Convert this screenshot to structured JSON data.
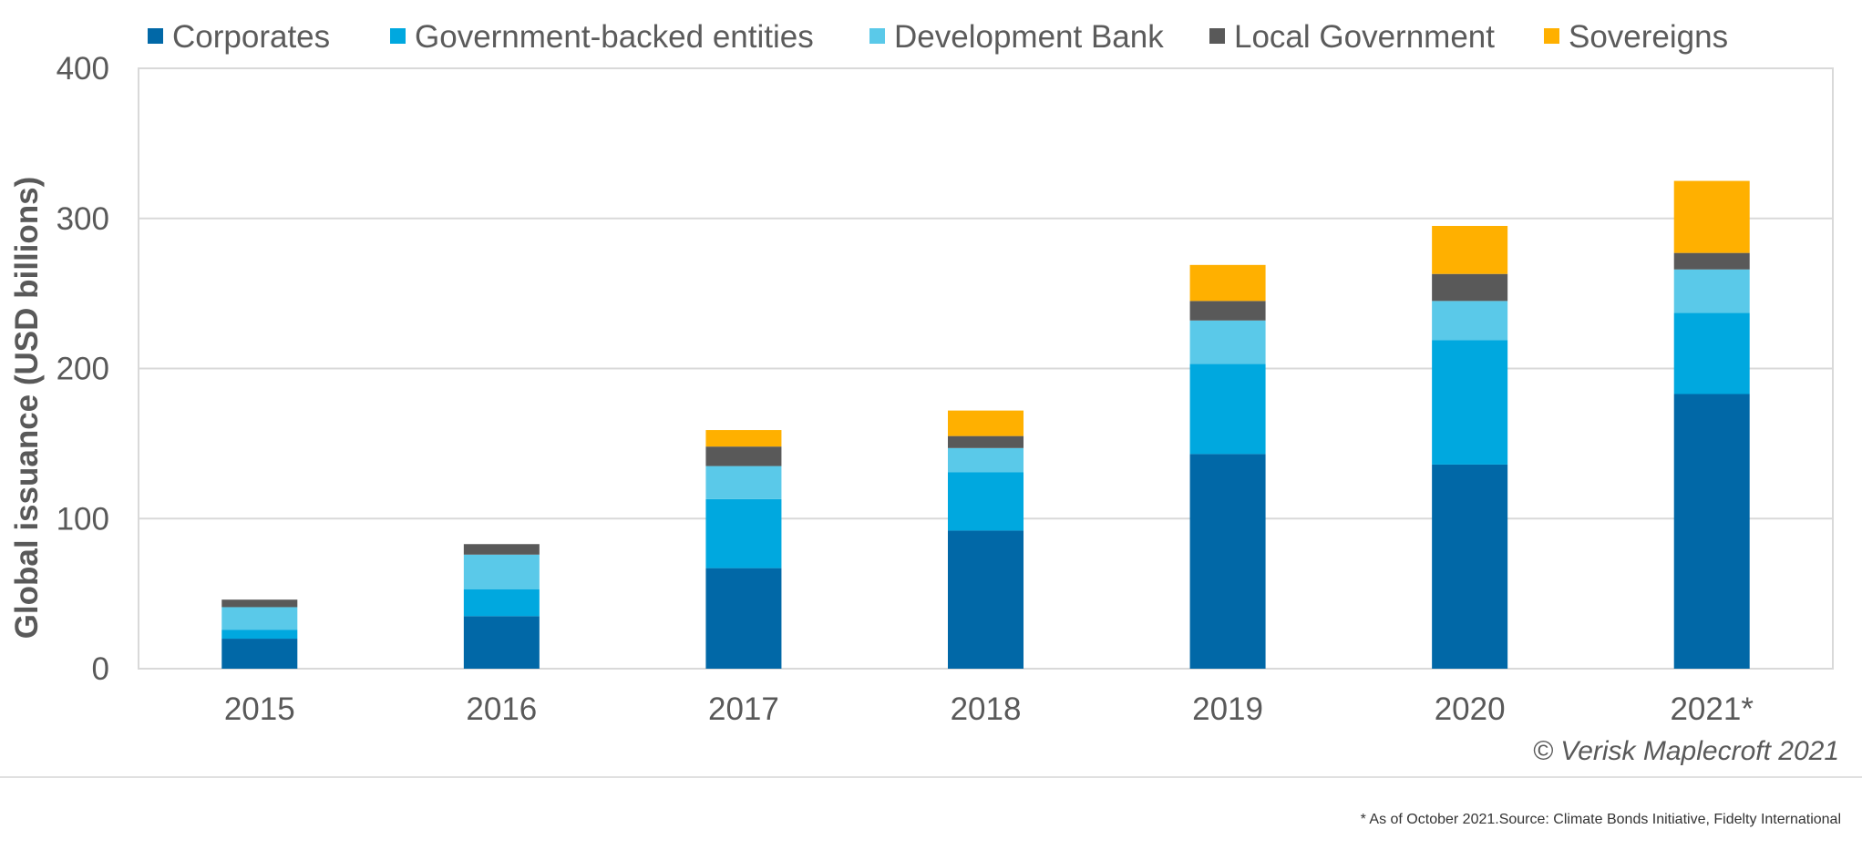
{
  "chart_data": {
    "type": "bar",
    "stacked": true,
    "categories": [
      "2015",
      "2016",
      "2017",
      "2018",
      "2019",
      "2020",
      "2021*"
    ],
    "series": [
      {
        "name": "Corporates",
        "color": "#0168a7",
        "values": [
          20,
          35,
          67,
          92,
          143,
          136,
          183
        ]
      },
      {
        "name": "Government-backed entities",
        "color": "#00a8df",
        "values": [
          6,
          18,
          46,
          39,
          60,
          83,
          54
        ]
      },
      {
        "name": "Development Bank",
        "color": "#5ac9e9",
        "values": [
          15,
          23,
          22,
          16,
          29,
          26,
          29
        ]
      },
      {
        "name": "Local Government",
        "color": "#595959",
        "values": [
          5,
          7,
          13,
          8,
          13,
          18,
          11
        ]
      },
      {
        "name": "Sovereigns",
        "color": "#ffb000",
        "values": [
          0,
          0,
          11,
          17,
          24,
          32,
          48
        ]
      }
    ],
    "ylabel": "Global issuance (USD billions)",
    "xlabel": "",
    "ylim": [
      0,
      400
    ],
    "yticks": [
      "0",
      "100",
      "200",
      "300",
      "400"
    ],
    "grid": true,
    "legend_position": "top"
  },
  "credit": "© Verisk Maplecroft 2021",
  "footnote": "* As of October 2021.Source: Climate Bonds Initiative, Fidelty International"
}
